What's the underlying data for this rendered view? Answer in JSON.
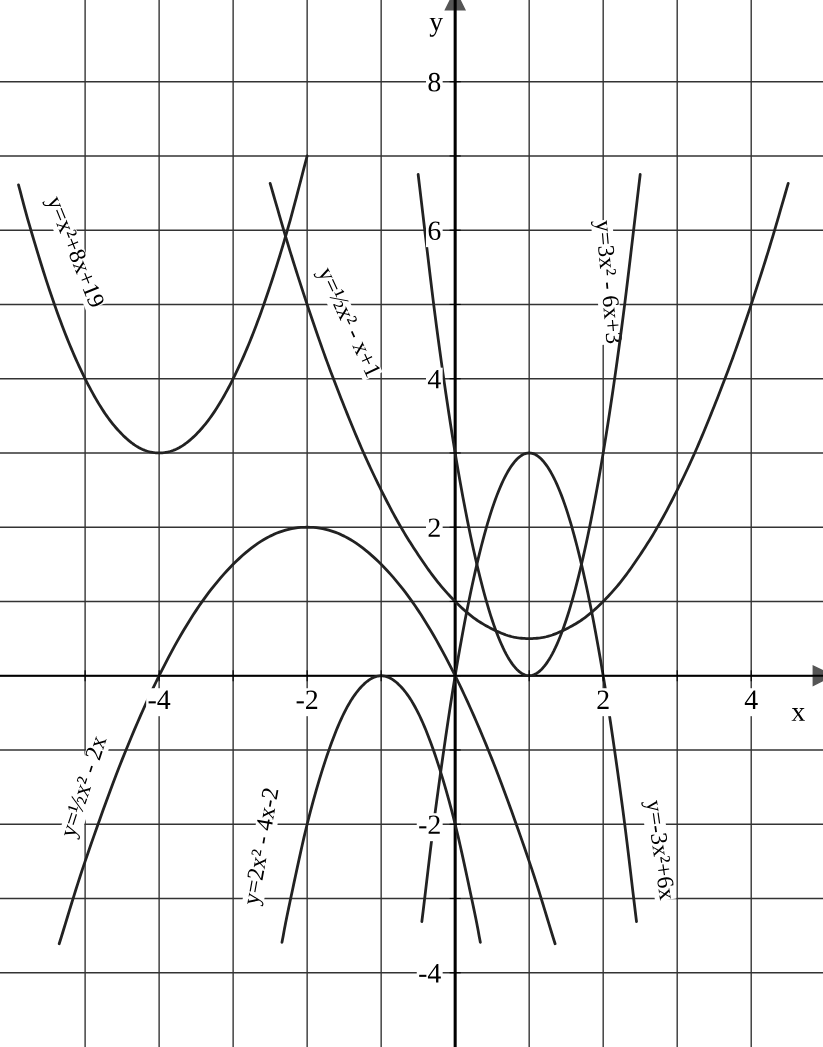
{
  "chart_data": {
    "type": "line",
    "xlabel": "x",
    "ylabel": "y",
    "xlim": [
      -6.15,
      4.97
    ],
    "ylim": [
      -5.0,
      9.1
    ],
    "xticks": [
      {
        "value": -5,
        "label": null
      },
      -4,
      {
        "value": -3,
        "label": null
      },
      -2,
      {
        "value": -1,
        "label": null
      },
      {
        "value": 0,
        "label": null
      },
      {
        "value": 1,
        "label": null
      },
      2,
      {
        "value": 3,
        "label": null
      },
      4
    ],
    "yticks": [
      -4,
      {
        "value": -3,
        "label": null
      },
      -2,
      {
        "value": -1,
        "label": null
      },
      {
        "value": 0,
        "label": null
      },
      {
        "value": 1,
        "label": null
      },
      2,
      {
        "value": 3,
        "label": null
      },
      4,
      {
        "value": 5,
        "label": null
      },
      6,
      {
        "value": 7,
        "label": null
      },
      8
    ],
    "grid": true,
    "marker": "none",
    "line_style": "solid",
    "series": [
      {
        "color": "#222222",
        "x": [
          -5.9,
          -5.75,
          -5.5,
          -5.25,
          -5,
          -4.75,
          -4.5,
          -4.25,
          -4,
          -3.75,
          -3.5,
          -3.25,
          -3,
          -2.75,
          -2.5,
          -2.25,
          -2
        ],
        "values": [
          6.61,
          6.06,
          5.25,
          4.56,
          4,
          3.56,
          3.25,
          3.06,
          3,
          3.06,
          3.25,
          3.56,
          4,
          4.56,
          5.25,
          6.06,
          7
        ]
      },
      {
        "color": "#222222",
        "x": [
          -2.5,
          -2.25,
          -2,
          -1.75,
          -1.5,
          -1.25,
          -1,
          -0.75,
          -0.5,
          -0.25,
          0,
          0.25,
          0.5,
          0.75,
          1,
          1.25,
          1.5,
          1.75,
          2,
          2.25,
          2.5,
          2.75,
          3,
          3.25,
          3.5,
          3.75,
          4,
          4.25,
          4.5
        ],
        "values": [
          6.63,
          5.78,
          5,
          4.28,
          3.63,
          3.03,
          2.5,
          2.03,
          1.63,
          1.28,
          1,
          0.78,
          0.63,
          0.53,
          0.5,
          0.53,
          0.63,
          0.78,
          1,
          1.28,
          1.63,
          2.03,
          2.5,
          3.03,
          3.63,
          4.28,
          5,
          5.78,
          6.63
        ]
      },
      {
        "color": "#222222",
        "x": [
          -0.5,
          -0.25,
          0,
          0.25,
          0.5,
          0.75,
          1,
          1.25,
          1.5,
          1.75,
          2,
          2.25,
          2.5
        ],
        "values": [
          6.75,
          4.69,
          3,
          1.69,
          0.75,
          0.19,
          0,
          0.19,
          0.75,
          1.69,
          3,
          4.69,
          6.75
        ]
      },
      {
        "color": "#222222",
        "x": [
          -0.45,
          -0.25,
          0,
          0.25,
          0.5,
          0.75,
          1,
          1.25,
          1.5,
          1.75,
          2,
          2.25,
          2.45
        ],
        "values": [
          -3.31,
          -1.69,
          0,
          1.31,
          2.25,
          2.81,
          3,
          2.81,
          2.25,
          1.31,
          0,
          -1.69,
          -3.31
        ]
      },
      {
        "color": "#222222",
        "x": [
          -5.35,
          -5,
          -4.5,
          -4,
          -3.5,
          -3,
          -2.5,
          -2,
          -1.5,
          -1,
          -0.5,
          0,
          0.5,
          1,
          1.35
        ],
        "values": [
          -3.61,
          -2.5,
          -1.13,
          0,
          0.88,
          1.5,
          1.88,
          2,
          1.88,
          1.5,
          0.88,
          0,
          -1.13,
          -2.5,
          -3.61
        ]
      },
      {
        "color": "#222222",
        "x": [
          -2.34,
          -2.25,
          -2,
          -1.75,
          -1.5,
          -1.25,
          -1,
          -0.75,
          -0.5,
          -0.25,
          0,
          0.25,
          0.34
        ],
        "values": [
          -3.59,
          -3.13,
          -2,
          -1.13,
          -0.5,
          -0.13,
          0,
          -0.13,
          -0.5,
          -1.13,
          -2,
          -3.13,
          -3.59
        ]
      }
    ],
    "annotations": [
      "y=x²+8x+19",
      "y=½x² - x+1",
      "y=3x² - 6x+3",
      "y=½x² - 2x",
      "y=2x² - 4x-2",
      "y=-3x²+6x"
    ]
  }
}
